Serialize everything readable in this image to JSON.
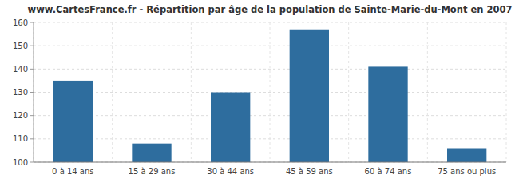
{
  "chart_data": {
    "type": "bar",
    "title": "www.CartesFrance.fr - Répartition par âge de la population de Sainte-Marie-du-Mont en 2007",
    "categories": [
      "0 à 14 ans",
      "15 à 29 ans",
      "30 à 44 ans",
      "45 à 59 ans",
      "60 à 74 ans",
      "75 ans ou plus"
    ],
    "values": [
      135,
      108,
      130,
      157,
      141,
      106
    ],
    "color": "#2E6D9E",
    "ylim": [
      100,
      160
    ],
    "yticks": [
      100,
      110,
      120,
      130,
      140,
      150,
      160
    ],
    "grid": true
  }
}
